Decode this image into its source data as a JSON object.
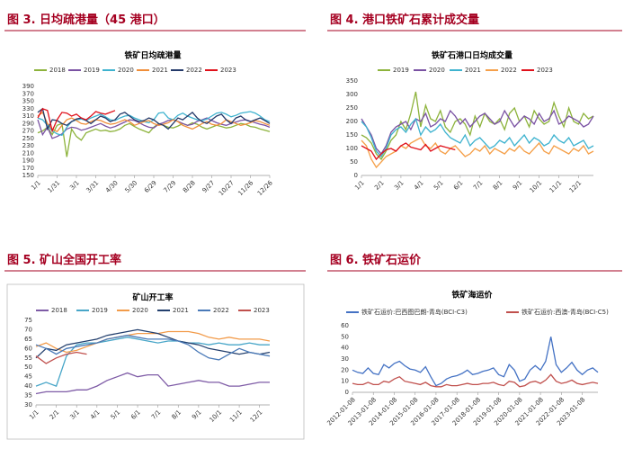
{
  "chart_data": [
    {
      "type": "line",
      "caption": "图 3. 日均疏港量（45 港口）",
      "title": "铁矿日均疏港量",
      "categories": [
        "1/1",
        null,
        null,
        null,
        "1/31",
        null,
        null,
        null,
        "3/1",
        null,
        null,
        null,
        "3/31",
        null,
        null,
        null,
        "4/30",
        null,
        null,
        null,
        "5/30",
        null,
        null,
        null,
        "6/29",
        null,
        null,
        null,
        "7/29",
        null,
        null,
        null,
        "8/28",
        null,
        null,
        null,
        "9/27",
        null,
        null,
        null,
        "10/27",
        null,
        null,
        null,
        "11/26",
        null,
        null,
        null,
        "12/26"
      ],
      "ylim": [
        150,
        390
      ],
      "yticks": [
        150,
        170,
        190,
        210,
        230,
        250,
        270,
        290,
        310,
        330,
        350,
        370,
        390
      ],
      "grid": false,
      "series": [
        {
          "name": "2018",
          "color": "#8db33c",
          "values": [
            265,
            270,
            280,
            260,
            285,
            290,
            200,
            275,
            255,
            245,
            265,
            270,
            275,
            270,
            272,
            268,
            270,
            275,
            285,
            290,
            282,
            275,
            270,
            265,
            280,
            290,
            285,
            280,
            278,
            283,
            290,
            285,
            292,
            288,
            280,
            275,
            280,
            285,
            282,
            278,
            280,
            285,
            290,
            288,
            282,
            280,
            275,
            272,
            268
          ]
        },
        {
          "name": "2019",
          "color": "#7a52a3",
          "values": [
            300,
            260,
            280,
            250,
            255,
            262,
            275,
            280,
            278,
            272,
            275,
            280,
            285,
            290,
            283,
            278,
            282,
            288,
            294,
            300,
            298,
            292,
            285,
            280,
            278,
            288,
            292,
            298,
            300,
            296,
            290,
            285,
            288,
            296,
            300,
            305,
            298,
            292,
            288,
            285,
            290,
            294,
            298,
            300,
            296,
            292,
            288,
            285,
            280
          ]
        },
        {
          "name": "2020",
          "color": "#3fb3cf",
          "values": [
            305,
            300,
            285,
            270,
            262,
            258,
            280,
            295,
            300,
            302,
            298,
            305,
            310,
            315,
            308,
            300,
            298,
            305,
            310,
            312,
            305,
            300,
            295,
            292,
            300,
            318,
            320,
            305,
            300,
            312,
            318,
            310,
            305,
            300,
            298,
            302,
            310,
            318,
            320,
            315,
            308,
            312,
            318,
            320,
            322,
            318,
            310,
            300,
            295
          ]
        },
        {
          "name": "2021",
          "color": "#f08e39",
          "values": [
            310,
            320,
            290,
            275,
            268,
            285,
            300,
            305,
            298,
            290,
            288,
            295,
            300,
            298,
            292,
            288,
            290,
            295,
            300,
            295,
            285,
            290,
            295,
            298,
            290,
            285,
            288,
            292,
            300,
            295,
            285,
            280,
            275,
            282,
            290,
            295,
            288,
            285,
            290,
            300,
            295,
            290,
            285,
            288,
            292,
            298,
            295,
            290,
            285
          ]
        },
        {
          "name": "2022",
          "color": "#243a6a",
          "values": [
            320,
            330,
            275,
            300,
            298,
            290,
            285,
            295,
            302,
            305,
            298,
            290,
            300,
            310,
            305,
            295,
            300,
            315,
            320,
            310,
            300,
            295,
            298,
            305,
            300,
            290,
            285,
            275,
            290,
            305,
            300,
            310,
            320,
            305,
            295,
            290,
            300,
            310,
            315,
            300,
            290,
            305,
            310,
            300,
            295,
            300,
            305,
            298,
            290
          ]
        },
        {
          "name": "2023",
          "color": "#e0111b",
          "values": [
            305,
            330,
            325,
            270,
            300,
            320,
            318,
            310,
            315,
            305,
            300,
            310,
            322,
            318,
            315,
            320,
            325,
            null,
            null,
            null,
            null,
            null,
            null,
            null,
            null,
            null,
            null,
            null,
            null,
            null,
            null,
            null,
            null,
            null,
            null,
            null,
            null,
            null,
            null,
            null,
            null,
            null,
            null,
            null,
            null,
            null,
            null,
            null,
            null
          ]
        }
      ]
    },
    {
      "type": "line",
      "caption": "图 4. 港口铁矿石累计成交量",
      "title": "铁矿石港口日均成交量",
      "categories": [
        "1/1",
        null,
        null,
        null,
        "2/1",
        null,
        null,
        null,
        "3/1",
        null,
        null,
        null,
        "4/1",
        null,
        null,
        null,
        "5/1",
        null,
        null,
        null,
        "6/1",
        null,
        null,
        null,
        "7/1",
        null,
        null,
        null,
        "8/1",
        null,
        null,
        null,
        "9/1",
        null,
        null,
        null,
        "10/1",
        null,
        null,
        null,
        "11/1",
        null,
        null,
        null,
        "12/1",
        null,
        null,
        null
      ],
      "ylim": [
        0,
        350
      ],
      "yticks": [
        0,
        50,
        100,
        150,
        200,
        250,
        300,
        350
      ],
      "grid": false,
      "series": [
        {
          "name": "2019",
          "color": "#8db33c",
          "values": [
            150,
            140,
            120,
            80,
            60,
            90,
            130,
            150,
            200,
            170,
            230,
            310,
            180,
            260,
            210,
            200,
            240,
            180,
            160,
            200,
            210,
            190,
            150,
            220,
            180,
            230,
            200,
            190,
            210,
            170,
            230,
            250,
            200,
            220,
            180,
            240,
            210,
            190,
            200,
            270,
            220,
            180,
            250,
            200,
            190,
            230,
            210,
            220
          ]
        },
        {
          "name": "2020",
          "color": "#7a52a3",
          "values": [
            210,
            180,
            150,
            100,
            80,
            110,
            160,
            180,
            190,
            200,
            170,
            210,
            200,
            230,
            180,
            190,
            210,
            200,
            240,
            220,
            190,
            210,
            180,
            200,
            220,
            230,
            210,
            190,
            200,
            240,
            210,
            180,
            200,
            220,
            210,
            190,
            230,
            200,
            210,
            240,
            190,
            200,
            220,
            210,
            200,
            180,
            190,
            220
          ]
        },
        {
          "name": "2021",
          "color": "#3fb3cf",
          "values": [
            200,
            180,
            140,
            90,
            70,
            100,
            150,
            170,
            180,
            160,
            190,
            210,
            150,
            180,
            160,
            170,
            190,
            160,
            140,
            130,
            120,
            150,
            110,
            130,
            140,
            120,
            100,
            110,
            130,
            120,
            140,
            110,
            130,
            150,
            120,
            140,
            130,
            110,
            120,
            150,
            130,
            120,
            140,
            110,
            120,
            130,
            100,
            110
          ]
        },
        {
          "name": "2022",
          "color": "#f5a04a",
          "values": [
            130,
            110,
            60,
            30,
            50,
            70,
            80,
            90,
            110,
            100,
            120,
            130,
            140,
            110,
            100,
            120,
            90,
            80,
            100,
            110,
            90,
            70,
            80,
            100,
            90,
            110,
            80,
            100,
            90,
            80,
            100,
            90,
            110,
            90,
            80,
            100,
            120,
            90,
            80,
            110,
            100,
            90,
            80,
            100,
            90,
            110,
            80,
            90
          ]
        },
        {
          "name": "2023",
          "color": "#e0111b",
          "values": [
            110,
            100,
            90,
            60,
            80,
            95,
            100,
            90,
            110,
            120,
            105,
            100,
            95,
            115,
            90,
            100,
            110,
            105,
            100,
            95,
            null,
            null,
            null,
            null,
            null,
            null,
            null,
            null,
            null,
            null,
            null,
            null,
            null,
            null,
            null,
            null,
            null,
            null,
            null,
            null,
            null,
            null,
            null,
            null,
            null,
            null,
            null,
            null
          ]
        }
      ]
    },
    {
      "type": "line",
      "caption": "图 5. 矿山全国开工率",
      "title": "矿山开工率",
      "categories": [
        "1/1",
        null,
        "2/1",
        null,
        "3/1",
        null,
        "4/1",
        null,
        "5/1",
        null,
        "6/1",
        null,
        "7/1",
        null,
        "8/1",
        null,
        "9/1",
        null,
        "10/1",
        null,
        "11/1",
        null,
        "12/1",
        null
      ],
      "ylim": [
        30,
        75
      ],
      "yticks": [
        30,
        35,
        40,
        45,
        50,
        55,
        60,
        65,
        70,
        75
      ],
      "grid": false,
      "series": [
        {
          "name": "2018",
          "color": "#7e5ba6",
          "values": [
            36,
            37,
            37,
            37,
            38,
            38,
            40,
            43,
            45,
            47,
            45,
            46,
            46,
            40,
            41,
            42,
            43,
            42,
            42,
            40,
            40,
            41,
            42,
            42
          ]
        },
        {
          "name": "2019",
          "color": "#48a6c8",
          "values": [
            40,
            42,
            40,
            56,
            62,
            63,
            63,
            64,
            65,
            66,
            65,
            64,
            63,
            64,
            64,
            63,
            63,
            62,
            63,
            62,
            62,
            63,
            62,
            62
          ]
        },
        {
          "name": "2020",
          "color": "#f29b4a",
          "values": [
            61,
            63,
            60,
            58,
            59,
            61,
            63,
            65,
            66,
            67,
            68,
            68,
            68,
            69,
            69,
            69,
            68,
            66,
            65,
            66,
            65,
            65,
            65,
            64
          ]
        },
        {
          "name": "2021",
          "color": "#24406e",
          "values": [
            55,
            60,
            59,
            62,
            63,
            64,
            65,
            67,
            68,
            69,
            70,
            69,
            68,
            66,
            64,
            63,
            62,
            60,
            59,
            58,
            57,
            58,
            57,
            58
          ]
        },
        {
          "name": "2022",
          "color": "#4a7ab8",
          "values": [
            62,
            60,
            57,
            60,
            61,
            62,
            63,
            65,
            66,
            67,
            66,
            65,
            65,
            65,
            64,
            62,
            58,
            55,
            54,
            57,
            60,
            58,
            57,
            56
          ]
        },
        {
          "name": "2023",
          "color": "#c0504d",
          "values": [
            56,
            52,
            55,
            57,
            58,
            57,
            null,
            null,
            null,
            null,
            null,
            null,
            null,
            null,
            null,
            null,
            null,
            null,
            null,
            null,
            null,
            null,
            null,
            null
          ]
        }
      ]
    },
    {
      "type": "line",
      "caption": "图 6. 铁矿石运价",
      "title": "铁矿海运价",
      "categories": [
        "2012-01-08",
        null,
        null,
        null,
        "2013-01-08",
        null,
        null,
        null,
        "2014-01-08",
        null,
        null,
        null,
        "2015-01-08",
        null,
        null,
        null,
        "2016-01-08",
        null,
        null,
        null,
        "2017-01-08",
        null,
        null,
        null,
        "2018-01-08",
        null,
        null,
        null,
        "2019-01-08",
        null,
        null,
        null,
        "2020-01-08",
        null,
        null,
        null,
        "2021-01-08",
        null,
        null,
        null,
        "2022-01-08",
        null,
        null,
        null,
        "2023-01-08",
        null,
        null,
        null
      ],
      "ylim": [
        0,
        60
      ],
      "yticks": [
        0,
        10,
        20,
        30,
        40,
        50,
        60
      ],
      "grid": false,
      "series": [
        {
          "name": "铁矿石运价:巴西图巴朗-青岛(BCI-C3)",
          "color": "#4472c4",
          "values": [
            20,
            18,
            17,
            22,
            17,
            16,
            25,
            22,
            26,
            28,
            24,
            21,
            20,
            18,
            23,
            14,
            6,
            8,
            12,
            14,
            15,
            17,
            20,
            16,
            17,
            19,
            20,
            22,
            16,
            14,
            25,
            20,
            10,
            12,
            20,
            24,
            20,
            28,
            50,
            25,
            18,
            22,
            27,
            20,
            16,
            20,
            22,
            18
          ]
        },
        {
          "name": "铁矿石运价:西澳-青岛(BCI-C5)",
          "color": "#c0504d",
          "values": [
            8,
            7,
            7,
            9,
            7,
            7,
            10,
            9,
            12,
            14,
            10,
            9,
            8,
            7,
            9,
            6,
            5,
            5,
            7,
            6,
            6,
            7,
            8,
            7,
            7,
            8,
            8,
            9,
            7,
            6,
            10,
            9,
            5,
            6,
            9,
            10,
            8,
            11,
            16,
            10,
            8,
            9,
            11,
            8,
            7,
            8,
            9,
            8
          ]
        }
      ]
    }
  ]
}
